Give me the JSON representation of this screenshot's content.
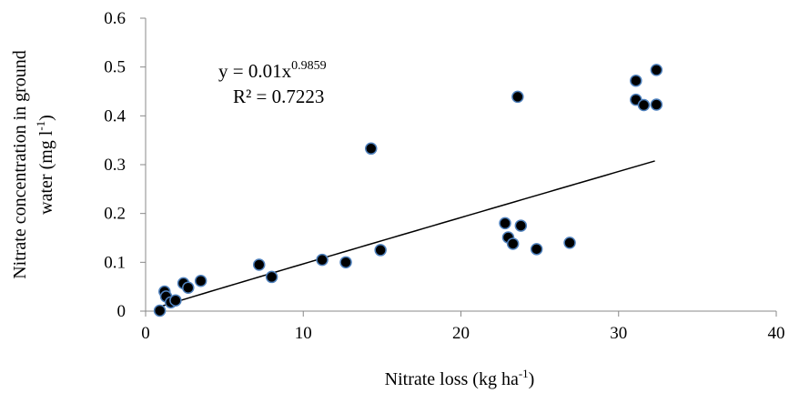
{
  "chart_data": {
    "type": "scatter",
    "title": "",
    "xlabel": {
      "base": "Nitrate loss (kg ha",
      "sup": "-1",
      "tail": ")"
    },
    "ylabel": {
      "line1": "Nitrate concentration in ground",
      "line2_base": "water  (mg l",
      "line2_sup": "-1",
      "line2_tail": ")"
    },
    "xlim": [
      0,
      40
    ],
    "ylim": [
      0,
      0.6
    ],
    "xticks": [
      "0",
      "10",
      "20",
      "30",
      "40"
    ],
    "yticks": [
      "0",
      "0.1",
      "0.2",
      "0.3",
      "0.4",
      "0.5",
      "0.6"
    ],
    "grid": false,
    "points": [
      {
        "x": 0.9,
        "y": 0.001
      },
      {
        "x": 1.2,
        "y": 0.04
      },
      {
        "x": 1.3,
        "y": 0.03
      },
      {
        "x": 1.6,
        "y": 0.018
      },
      {
        "x": 1.9,
        "y": 0.022
      },
      {
        "x": 2.4,
        "y": 0.057
      },
      {
        "x": 2.7,
        "y": 0.048
      },
      {
        "x": 3.5,
        "y": 0.062
      },
      {
        "x": 7.2,
        "y": 0.095
      },
      {
        "x": 8.0,
        "y": 0.07
      },
      {
        "x": 11.2,
        "y": 0.105
      },
      {
        "x": 12.7,
        "y": 0.1
      },
      {
        "x": 14.3,
        "y": 0.333
      },
      {
        "x": 14.9,
        "y": 0.125
      },
      {
        "x": 22.8,
        "y": 0.18
      },
      {
        "x": 23.0,
        "y": 0.151
      },
      {
        "x": 23.3,
        "y": 0.138
      },
      {
        "x": 23.6,
        "y": 0.439
      },
      {
        "x": 23.8,
        "y": 0.175
      },
      {
        "x": 24.8,
        "y": 0.127
      },
      {
        "x": 26.9,
        "y": 0.14
      },
      {
        "x": 31.1,
        "y": 0.472
      },
      {
        "x": 31.1,
        "y": 0.433
      },
      {
        "x": 31.6,
        "y": 0.422
      },
      {
        "x": 32.4,
        "y": 0.494
      },
      {
        "x": 32.4,
        "y": 0.423
      }
    ],
    "marker_color": "#000000",
    "marker_edge_color": "#4f81bd",
    "trendline": {
      "type": "power",
      "coefficient": 0.01,
      "exponent": 0.9859,
      "x_range": [
        1.0,
        32.3
      ],
      "color": "#000000",
      "equation_base": "y = 0.01x",
      "equation_sup": "0.9859",
      "r_squared_label": "R² = 0.7223"
    }
  }
}
